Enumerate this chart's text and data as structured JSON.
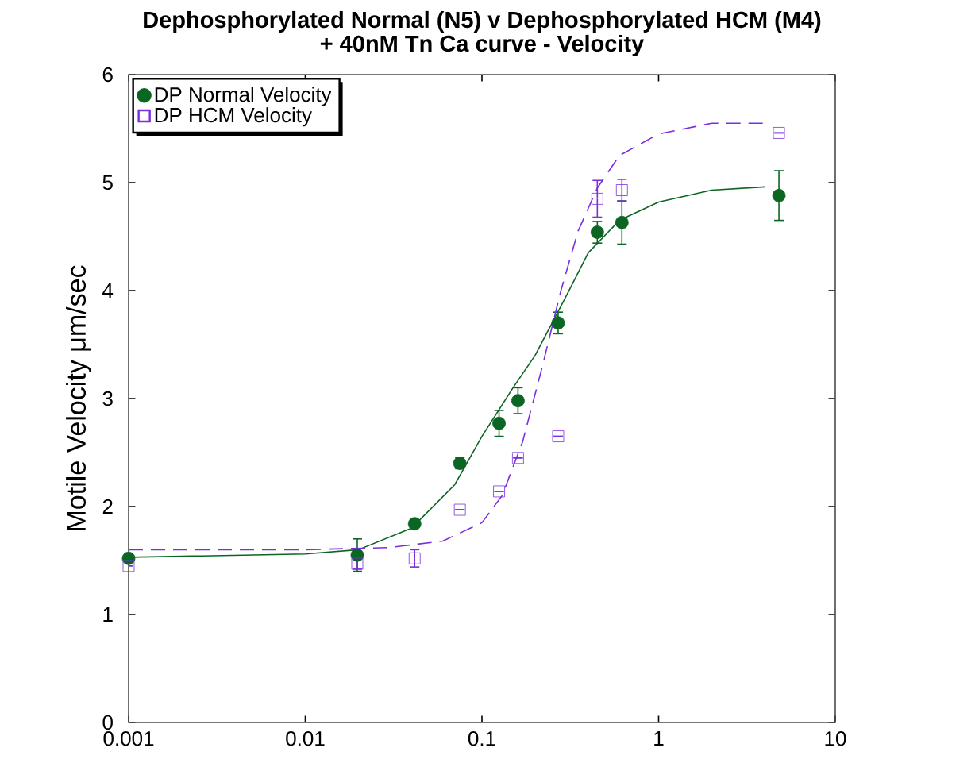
{
  "chart_data": {
    "type": "scatter",
    "title": "Dephosphorylated Normal (N5) v Dephosphorylated HCM (M4)\n+ 40nM Tn Ca curve - Velocity",
    "ylabel": "Motile Velocity μm/sec",
    "log": "x",
    "xlim": [
      0.001,
      10
    ],
    "ylim": [
      0,
      6
    ],
    "xticks": [
      0.001,
      0.01,
      0.1,
      1,
      10
    ],
    "yticks": [
      0,
      1,
      2,
      3,
      4,
      5,
      6
    ],
    "grid": false,
    "legend": "top left",
    "series": [
      {
        "name": "DP Normal Velocity",
        "color": "#0b6623",
        "marker": "circle",
        "x": [
          0.001,
          0.0197,
          0.0416,
          0.075,
          0.125,
          0.16,
          0.27,
          0.45,
          0.62,
          4.8
        ],
        "values": [
          1.52,
          1.55,
          1.84,
          2.4,
          2.77,
          2.98,
          3.7,
          4.54,
          4.63,
          4.88
        ],
        "errors": [
          null,
          0.15,
          null,
          0.05,
          0.12,
          0.12,
          0.1,
          0.1,
          0.2,
          0.23
        ]
      },
      {
        "name": "DP HCM Velocity",
        "color": "#7a2ee0",
        "marker": "square",
        "x": [
          0.001,
          0.0197,
          0.0416,
          0.075,
          0.125,
          0.16,
          0.27,
          0.45,
          0.62,
          4.8
        ],
        "values": [
          1.45,
          1.47,
          1.52,
          1.97,
          2.14,
          2.45,
          2.65,
          4.85,
          4.93,
          5.46
        ],
        "errors": [
          null,
          0.05,
          0.08,
          null,
          null,
          null,
          null,
          0.17,
          0.1,
          null
        ]
      },
      {
        "type": "line",
        "color": "#0b6623",
        "marker": "none",
        "line_style": "solid",
        "x": [
          0.001,
          0.01,
          0.02,
          0.04,
          0.07,
          0.1,
          0.15,
          0.2,
          0.3,
          0.4,
          0.6,
          1,
          2,
          4
        ],
        "values": [
          1.53,
          1.56,
          1.6,
          1.8,
          2.2,
          2.65,
          3.1,
          3.4,
          3.95,
          4.35,
          4.65,
          4.82,
          4.93,
          4.96
        ]
      },
      {
        "type": "line",
        "color": "#7a2ee0",
        "marker": "none",
        "line_style": "dashed",
        "x": [
          0.001,
          0.01,
          0.03,
          0.06,
          0.1,
          0.13,
          0.17,
          0.22,
          0.28,
          0.35,
          0.45,
          0.6,
          1,
          2,
          4
        ],
        "values": [
          1.6,
          1.6,
          1.62,
          1.68,
          1.85,
          2.1,
          2.6,
          3.3,
          4.0,
          4.55,
          4.95,
          5.25,
          5.45,
          5.55,
          5.55
        ]
      }
    ]
  }
}
